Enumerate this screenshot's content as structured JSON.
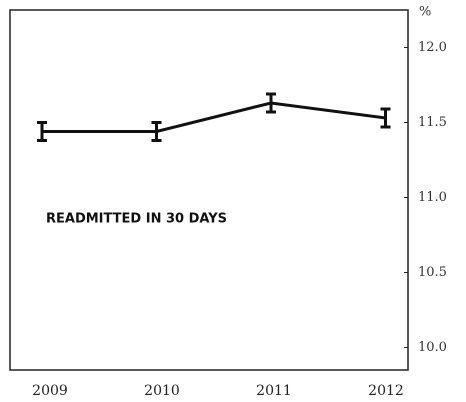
{
  "chart_data": {
    "type": "line",
    "y_label": "%",
    "annotation": "READMITTED IN 30 DAYS",
    "categories": [
      "2009",
      "2010",
      "2011",
      "2012"
    ],
    "values": [
      11.44,
      11.44,
      11.63,
      11.53
    ],
    "errors": [
      0.06,
      0.06,
      0.06,
      0.06
    ],
    "color": "#111111",
    "ylim": [
      9.85,
      12.25
    ],
    "yticks": [
      {
        "value": 10.0,
        "label": "10.0"
      },
      {
        "value": 10.5,
        "label": "10.5"
      },
      {
        "value": 11.0,
        "label": "11.0"
      },
      {
        "value": 11.5,
        "label": "11.5"
      },
      {
        "value": 12.0,
        "label": "12.0"
      }
    ],
    "y_axis_side": "right"
  }
}
